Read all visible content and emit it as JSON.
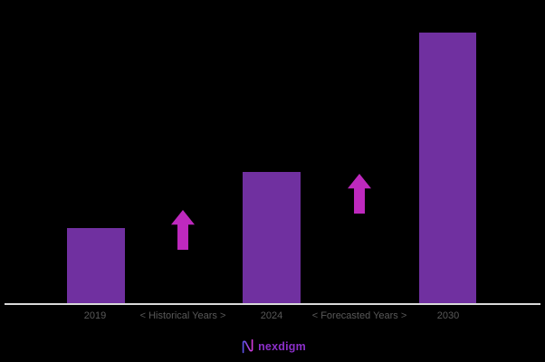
{
  "chart_data": {
    "type": "bar",
    "title": "",
    "xlabel": "",
    "ylabel": "",
    "categories": [
      "2019",
      "2024",
      "2030"
    ],
    "values": [
      83,
      145,
      299
    ],
    "value_scale": "relative bar heights in pixels; no y-axis or value labels shown",
    "axis_row_order": [
      "2019",
      "< Historical Years >",
      "2024",
      "< Forecasted Years >",
      "2030"
    ],
    "annotations": [
      "< Historical Years >",
      "< Forecasted Years >"
    ],
    "grid": false,
    "legend": false,
    "colors": {
      "bar": "#7030A0",
      "arrow": "#BE29BE",
      "axis_line": "#D9D9D9",
      "label_text": "#595959",
      "background": "#000000"
    }
  },
  "logo": {
    "text": "nexdigm",
    "icon": "nexdigm-n-mark",
    "text_color": "#8B2FC9",
    "icon_gradient_start": "#5B51E8",
    "icon_gradient_end": "#D43BD9"
  }
}
